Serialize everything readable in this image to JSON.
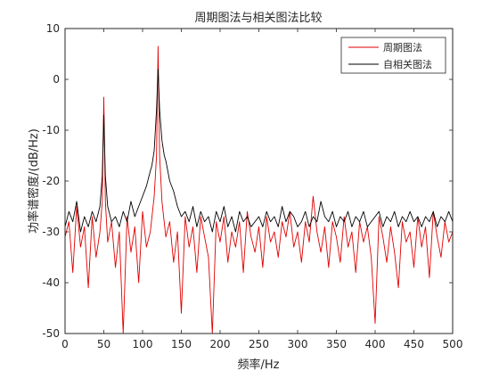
{
  "chart_data": {
    "type": "line",
    "title": "周期图法与相关图法比较",
    "xlabel": "频率/Hz",
    "ylabel": "功率谱密度/(dB/Hz)",
    "xlim": [
      0,
      500
    ],
    "ylim": [
      -50,
      10
    ],
    "xticks": [
      0,
      50,
      100,
      150,
      200,
      250,
      300,
      350,
      400,
      450,
      500
    ],
    "yticks": [
      -50,
      -40,
      -30,
      -20,
      -10,
      0,
      10
    ],
    "grid": false,
    "legend_position": "top-right",
    "series": [
      {
        "name": "周期图法",
        "color": "#e00000",
        "x": [
          0,
          5,
          10,
          15,
          20,
          25,
          30,
          35,
          40,
          45,
          48,
          50,
          52,
          55,
          60,
          65,
          70,
          75,
          80,
          85,
          90,
          95,
          100,
          105,
          110,
          115,
          118,
          120,
          122,
          125,
          130,
          135,
          140,
          145,
          150,
          155,
          160,
          165,
          170,
          175,
          180,
          185,
          190,
          195,
          200,
          205,
          210,
          215,
          220,
          225,
          230,
          235,
          240,
          245,
          250,
          255,
          260,
          265,
          270,
          275,
          280,
          285,
          290,
          295,
          300,
          305,
          310,
          315,
          320,
          325,
          330,
          335,
          340,
          345,
          350,
          355,
          360,
          365,
          370,
          375,
          380,
          385,
          390,
          395,
          400,
          405,
          410,
          415,
          420,
          425,
          430,
          435,
          440,
          445,
          450,
          455,
          460,
          465,
          470,
          475,
          480,
          485,
          490,
          495,
          500
        ],
        "values": [
          -31,
          -28,
          -38,
          -25,
          -33,
          -29,
          -41,
          -27,
          -35,
          -30,
          -24,
          -3.5,
          -24,
          -32,
          -28,
          -37,
          -30,
          -50,
          -27,
          -34,
          -29,
          -40,
          -26,
          -33,
          -30,
          -23,
          -15,
          6.5,
          -15,
          -24,
          -31,
          -28,
          -36,
          -30,
          -46,
          -27,
          -33,
          -29,
          -38,
          -27,
          -31,
          -35,
          -50,
          -28,
          -32,
          -27,
          -36,
          -30,
          -33,
          -28,
          -38,
          -26,
          -31,
          -34,
          -29,
          -37,
          -27,
          -32,
          -30,
          -35,
          -28,
          -31,
          -26,
          -33,
          -30,
          -36,
          -28,
          -32,
          -23,
          -30,
          -34,
          -29,
          -37,
          -28,
          -31,
          -36,
          -27,
          -33,
          -30,
          -38,
          -28,
          -32,
          -29,
          -35,
          -48,
          -27,
          -31,
          -36,
          -29,
          -34,
          -41,
          -28,
          -32,
          -30,
          -37,
          -27,
          -33,
          -29,
          -39,
          -26,
          -31,
          -35,
          -28,
          -32,
          -30
        ]
      },
      {
        "name": "自相关图法",
        "color": "#000000",
        "x": [
          0,
          5,
          10,
          15,
          20,
          25,
          30,
          35,
          40,
          45,
          48,
          50,
          52,
          55,
          60,
          65,
          70,
          75,
          80,
          85,
          90,
          95,
          100,
          105,
          110,
          112,
          115,
          118,
          120,
          122,
          125,
          128,
          130,
          135,
          140,
          145,
          150,
          155,
          160,
          165,
          170,
          175,
          180,
          185,
          190,
          195,
          200,
          205,
          210,
          215,
          220,
          225,
          230,
          235,
          240,
          245,
          250,
          255,
          260,
          265,
          270,
          275,
          280,
          285,
          290,
          295,
          300,
          305,
          310,
          315,
          320,
          325,
          330,
          335,
          340,
          345,
          350,
          355,
          360,
          365,
          370,
          375,
          380,
          385,
          390,
          395,
          400,
          405,
          410,
          415,
          420,
          425,
          430,
          435,
          440,
          445,
          450,
          455,
          460,
          465,
          470,
          475,
          480,
          485,
          490,
          495,
          500
        ],
        "values": [
          -29,
          -26,
          -28,
          -24,
          -30,
          -27,
          -29,
          -26,
          -28,
          -25,
          -19,
          -7,
          -19,
          -25,
          -28,
          -27,
          -29,
          -26,
          -28,
          -24,
          -27,
          -25,
          -23,
          -21,
          -18,
          -17,
          -14,
          -6,
          2,
          -6,
          -12,
          -15,
          -16,
          -20,
          -22,
          -25,
          -27,
          -26,
          -28,
          -25,
          -29,
          -26,
          -28,
          -27,
          -30,
          -26,
          -28,
          -25,
          -29,
          -27,
          -30,
          -26,
          -28,
          -27,
          -29,
          -28,
          -27,
          -29,
          -26,
          -28,
          -27,
          -29,
          -25,
          -28,
          -26,
          -27,
          -29,
          -28,
          -26,
          -29,
          -27,
          -28,
          -24,
          -27,
          -28,
          -26,
          -29,
          -27,
          -28,
          -26,
          -29,
          -27,
          -28,
          -26,
          -29,
          -28,
          -27,
          -26,
          -29,
          -27,
          -28,
          -26,
          -29,
          -27,
          -28,
          -26,
          -28,
          -27,
          -29,
          -27,
          -28,
          -26,
          -29,
          -27,
          -28,
          -26,
          -28
        ]
      }
    ]
  }
}
